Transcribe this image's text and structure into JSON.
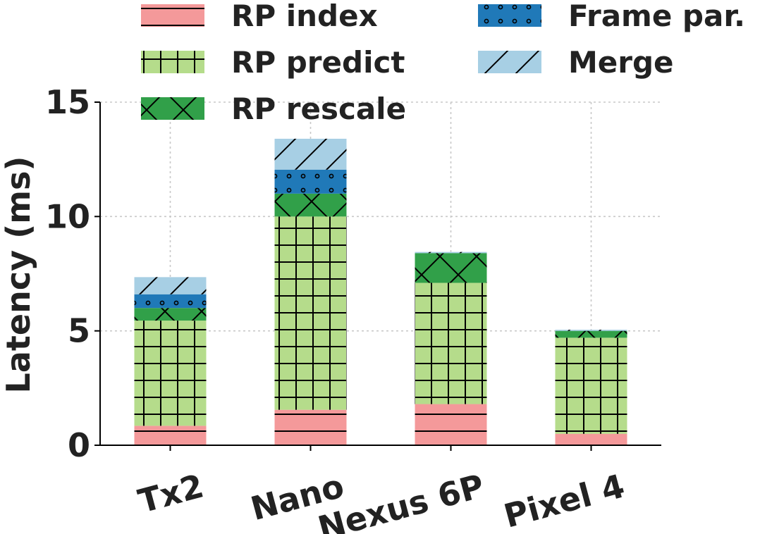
{
  "chart_data": {
    "type": "bar",
    "stacked": true,
    "categories": [
      "Tx2",
      "Nano",
      "Nexus 6P",
      "Pixel 4"
    ],
    "series": [
      {
        "name": "RP index",
        "values": [
          0.85,
          1.55,
          1.8,
          0.5
        ],
        "color": "#f4999a",
        "hatch": "horizontal"
      },
      {
        "name": "RP predict",
        "values": [
          4.6,
          8.45,
          5.3,
          4.2
        ],
        "color": "#b5dc8b",
        "hatch": "grid"
      },
      {
        "name": "RP rescale",
        "values": [
          0.55,
          1.0,
          1.3,
          0.3
        ],
        "color": "#31a049",
        "hatch": "cross"
      },
      {
        "name": "Frame par.",
        "values": [
          0.6,
          1.05,
          0.0,
          0.0
        ],
        "color": "#2079b8",
        "hatch": "dots"
      },
      {
        "name": "Merge",
        "values": [
          0.75,
          1.35,
          0.05,
          0.05
        ],
        "color": "#a7cfe4",
        "hatch": "diagonal"
      }
    ],
    "ylabel": "Latency (ms)",
    "xlabel": "",
    "ylim": [
      0,
      15
    ],
    "yticks": [
      0,
      5,
      10,
      15
    ],
    "grid": true,
    "legend": {
      "placement": "top",
      "columns": 2
    }
  }
}
